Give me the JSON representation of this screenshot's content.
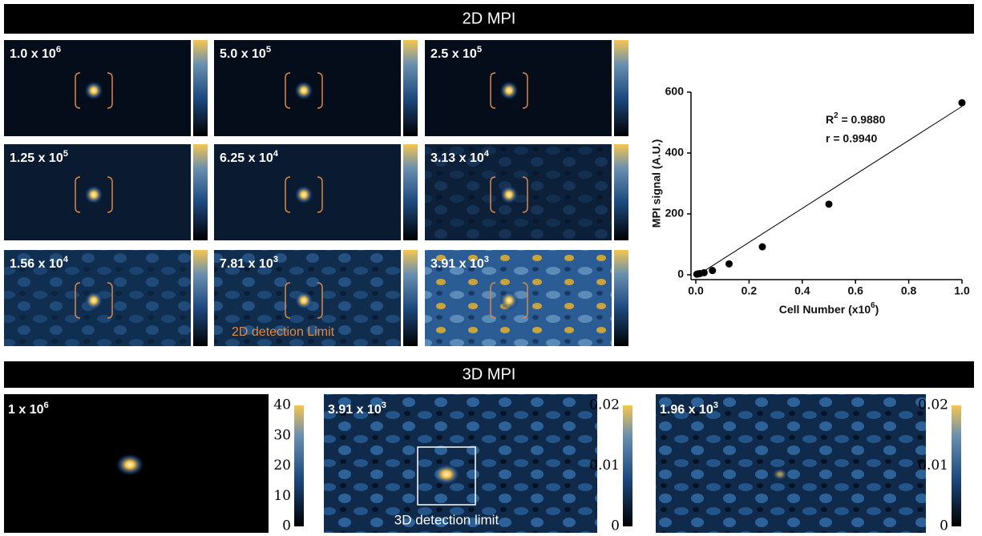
{
  "header_2d": "2D MPI",
  "header_3d": "3D MPI",
  "panels_2d": [
    {
      "base": "1.0 x 10",
      "exp": "6"
    },
    {
      "base": "5.0 x 10",
      "exp": "5"
    },
    {
      "base": "2.5 x 10",
      "exp": "5"
    },
    {
      "base": "1.25 x 10",
      "exp": "5"
    },
    {
      "base": "6.25 x 10",
      "exp": "4"
    },
    {
      "base": "3.13 x 10",
      "exp": "4"
    },
    {
      "base": "1.56 x 10",
      "exp": "4"
    },
    {
      "base": "7.81 x 10",
      "exp": "3",
      "caption": "2D detection Limit"
    },
    {
      "base": "3.91 x 10",
      "exp": "3"
    }
  ],
  "panels_3d": [
    {
      "base": "1 x 10",
      "exp": "6",
      "colorbar": [
        "40",
        "30",
        "20",
        "10",
        "0"
      ]
    },
    {
      "base": "3.91 x 10",
      "exp": "3",
      "caption": "3D detection limit",
      "colorbar": [
        "0.02",
        "0.01",
        "0"
      ]
    },
    {
      "base": "1.96 x 10",
      "exp": "3",
      "colorbar": [
        "0.02",
        "0.01",
        "0"
      ]
    }
  ],
  "chart_data": {
    "type": "scatter",
    "y_label": "MPI signal (A.U.)",
    "x_label": {
      "text": "Cell Number (x10",
      "sup": "6",
      "rest": ")"
    },
    "annotations": [
      {
        "text": "R",
        "sup": "2",
        "rest": " = 0.9880"
      },
      {
        "text": "r = 0.9940"
      }
    ],
    "x": [
      1.0,
      0.5,
      0.25,
      0.125,
      0.0625,
      0.03125,
      0.0156,
      0.0078,
      0.0039
    ],
    "values": [
      565,
      232,
      92,
      36,
      14,
      7,
      4,
      3,
      2
    ],
    "color": "#000000",
    "fit_line": {
      "x": [
        0,
        1
      ],
      "y": [
        -5,
        553
      ]
    },
    "xlim": [
      0,
      1
    ],
    "ylim": [
      0,
      600
    ],
    "xticks": [
      {
        "value": 0,
        "label": "0.0"
      },
      0.2,
      0.4,
      0.6,
      0.8,
      {
        "value": 1,
        "label": "1.0"
      }
    ],
    "yticks": [
      0,
      200,
      400,
      600
    ]
  }
}
